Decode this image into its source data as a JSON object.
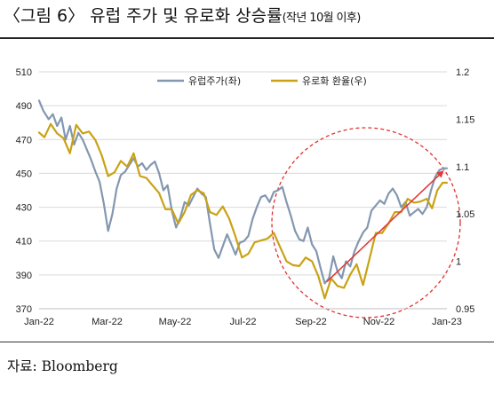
{
  "title": {
    "main": "〈그림 6〉 유럽 주가 및 유로화 상승률",
    "sub": "(작년 10월 이후)"
  },
  "source": "자료: Bloomberg",
  "colors": {
    "stock": "#8497b0",
    "euro": "#c9a215",
    "circle": "#e03030",
    "arrow": "#e03a3a"
  },
  "chart_data": {
    "type": "line",
    "x_labels": [
      "Jan-22",
      "Mar-22",
      "May-22",
      "Jul-22",
      "Sep-22",
      "Nov-22",
      "Jan-23"
    ],
    "x_range": [
      "2022-01-01",
      "2023-01-20"
    ],
    "ylim_left": [
      370,
      510
    ],
    "yticks_left": [
      "370",
      "390",
      "410",
      "430",
      "450",
      "470",
      "490",
      "510"
    ],
    "ylim_right": [
      0.95,
      1.2
    ],
    "yticks_right": [
      "0.95",
      "1",
      "1.05",
      "1.1",
      "1.15",
      "1.2"
    ],
    "legend_placement": "top-center",
    "annotations": [
      "dashed red circle around Sep-22 to Jan-23",
      "red upward arrow from late Sep-22 to Jan-23"
    ],
    "series": [
      {
        "name": "유럽주가(좌)",
        "axis": "left",
        "color": "#8497b0",
        "points": [
          [
            "2022-01-01",
            493
          ],
          [
            "2022-01-05",
            487
          ],
          [
            "2022-01-10",
            482
          ],
          [
            "2022-01-14",
            485
          ],
          [
            "2022-01-18",
            478
          ],
          [
            "2022-01-22",
            483
          ],
          [
            "2022-01-26",
            470
          ],
          [
            "2022-01-30",
            478
          ],
          [
            "2022-02-03",
            467
          ],
          [
            "2022-02-07",
            474
          ],
          [
            "2022-02-11",
            470
          ],
          [
            "2022-02-15",
            464
          ],
          [
            "2022-02-19",
            458
          ],
          [
            "2022-02-23",
            451
          ],
          [
            "2022-02-27",
            445
          ],
          [
            "2022-03-03",
            432
          ],
          [
            "2022-03-07",
            416
          ],
          [
            "2022-03-11",
            426
          ],
          [
            "2022-03-15",
            441
          ],
          [
            "2022-03-19",
            449
          ],
          [
            "2022-03-23",
            451
          ],
          [
            "2022-03-27",
            455
          ],
          [
            "2022-03-31",
            459
          ],
          [
            "2022-04-04",
            454
          ],
          [
            "2022-04-08",
            456
          ],
          [
            "2022-04-12",
            452
          ],
          [
            "2022-04-16",
            455
          ],
          [
            "2022-04-20",
            457
          ],
          [
            "2022-04-24",
            450
          ],
          [
            "2022-04-28",
            440
          ],
          [
            "2022-05-02",
            443
          ],
          [
            "2022-05-06",
            428
          ],
          [
            "2022-05-10",
            418
          ],
          [
            "2022-05-14",
            424
          ],
          [
            "2022-05-18",
            433
          ],
          [
            "2022-05-22",
            431
          ],
          [
            "2022-05-26",
            436
          ],
          [
            "2022-05-30",
            441
          ],
          [
            "2022-06-03",
            438
          ],
          [
            "2022-06-07",
            436
          ],
          [
            "2022-06-11",
            420
          ],
          [
            "2022-06-15",
            405
          ],
          [
            "2022-06-19",
            400
          ],
          [
            "2022-06-23",
            407
          ],
          [
            "2022-06-27",
            414
          ],
          [
            "2022-07-01",
            408
          ],
          [
            "2022-07-05",
            402
          ],
          [
            "2022-07-09",
            409
          ],
          [
            "2022-07-13",
            410
          ],
          [
            "2022-07-17",
            413
          ],
          [
            "2022-07-21",
            423
          ],
          [
            "2022-07-25",
            430
          ],
          [
            "2022-07-29",
            436
          ],
          [
            "2022-08-02",
            437
          ],
          [
            "2022-08-06",
            433
          ],
          [
            "2022-08-10",
            439
          ],
          [
            "2022-08-14",
            440
          ],
          [
            "2022-08-18",
            442
          ],
          [
            "2022-08-22",
            433
          ],
          [
            "2022-08-26",
            425
          ],
          [
            "2022-08-30",
            416
          ],
          [
            "2022-09-03",
            411
          ],
          [
            "2022-09-07",
            410
          ],
          [
            "2022-09-11",
            418
          ],
          [
            "2022-09-15",
            408
          ],
          [
            "2022-09-19",
            404
          ],
          [
            "2022-09-23",
            394
          ],
          [
            "2022-09-27",
            385
          ],
          [
            "2022-10-01",
            388
          ],
          [
            "2022-10-05",
            401
          ],
          [
            "2022-10-09",
            392
          ],
          [
            "2022-10-13",
            388
          ],
          [
            "2022-10-17",
            398
          ],
          [
            "2022-10-21",
            395
          ],
          [
            "2022-10-25",
            404
          ],
          [
            "2022-10-29",
            410
          ],
          [
            "2022-11-02",
            415
          ],
          [
            "2022-11-06",
            418
          ],
          [
            "2022-11-10",
            428
          ],
          [
            "2022-11-14",
            431
          ],
          [
            "2022-11-18",
            434
          ],
          [
            "2022-11-22",
            432
          ],
          [
            "2022-11-26",
            438
          ],
          [
            "2022-11-30",
            441
          ],
          [
            "2022-12-04",
            437
          ],
          [
            "2022-12-08",
            430
          ],
          [
            "2022-12-12",
            433
          ],
          [
            "2022-12-16",
            425
          ],
          [
            "2022-12-20",
            427
          ],
          [
            "2022-12-24",
            429
          ],
          [
            "2022-12-28",
            426
          ],
          [
            "2023-01-01",
            430
          ],
          [
            "2023-01-05",
            440
          ],
          [
            "2023-01-09",
            448
          ],
          [
            "2023-01-13",
            452
          ],
          [
            "2023-01-17",
            453
          ],
          [
            "2023-01-20",
            453
          ]
        ]
      },
      {
        "name": "유로화 환율(우)",
        "axis": "right",
        "color": "#c9a215",
        "points": [
          [
            "2022-01-01",
            1.136
          ],
          [
            "2022-01-06",
            1.131
          ],
          [
            "2022-01-12",
            1.145
          ],
          [
            "2022-01-18",
            1.135
          ],
          [
            "2022-01-24",
            1.13
          ],
          [
            "2022-01-30",
            1.114
          ],
          [
            "2022-02-05",
            1.144
          ],
          [
            "2022-02-11",
            1.135
          ],
          [
            "2022-02-17",
            1.137
          ],
          [
            "2022-02-23",
            1.128
          ],
          [
            "2022-03-01",
            1.112
          ],
          [
            "2022-03-07",
            1.09
          ],
          [
            "2022-03-13",
            1.094
          ],
          [
            "2022-03-19",
            1.106
          ],
          [
            "2022-03-25",
            1.1
          ],
          [
            "2022-03-31",
            1.114
          ],
          [
            "2022-04-06",
            1.09
          ],
          [
            "2022-04-12",
            1.088
          ],
          [
            "2022-04-18",
            1.08
          ],
          [
            "2022-04-24",
            1.072
          ],
          [
            "2022-04-30",
            1.055
          ],
          [
            "2022-05-06",
            1.055
          ],
          [
            "2022-05-12",
            1.04
          ],
          [
            "2022-05-18",
            1.052
          ],
          [
            "2022-05-24",
            1.07
          ],
          [
            "2022-05-30",
            1.075
          ],
          [
            "2022-06-05",
            1.072
          ],
          [
            "2022-06-11",
            1.052
          ],
          [
            "2022-06-17",
            1.049
          ],
          [
            "2022-06-23",
            1.058
          ],
          [
            "2022-06-29",
            1.045
          ],
          [
            "2022-07-05",
            1.026
          ],
          [
            "2022-07-11",
            1.004
          ],
          [
            "2022-07-17",
            1.008
          ],
          [
            "2022-07-23",
            1.02
          ],
          [
            "2022-07-29",
            1.022
          ],
          [
            "2022-08-04",
            1.024
          ],
          [
            "2022-08-10",
            1.03
          ],
          [
            "2022-08-16",
            1.015
          ],
          [
            "2022-08-22",
            1.0
          ],
          [
            "2022-08-28",
            0.996
          ],
          [
            "2022-09-03",
            0.995
          ],
          [
            "2022-09-09",
            1.004
          ],
          [
            "2022-09-15",
            1.0
          ],
          [
            "2022-09-21",
            0.984
          ],
          [
            "2022-09-27",
            0.961
          ],
          [
            "2022-10-03",
            0.982
          ],
          [
            "2022-10-09",
            0.974
          ],
          [
            "2022-10-15",
            0.972
          ],
          [
            "2022-10-21",
            0.986
          ],
          [
            "2022-10-27",
            0.997
          ],
          [
            "2022-11-02",
            0.975
          ],
          [
            "2022-11-08",
            1.002
          ],
          [
            "2022-11-14",
            1.03
          ],
          [
            "2022-11-20",
            1.03
          ],
          [
            "2022-11-26",
            1.04
          ],
          [
            "2022-12-02",
            1.052
          ],
          [
            "2022-12-08",
            1.052
          ],
          [
            "2022-12-14",
            1.066
          ],
          [
            "2022-12-20",
            1.062
          ],
          [
            "2022-12-26",
            1.063
          ],
          [
            "2023-01-01",
            1.066
          ],
          [
            "2023-01-06",
            1.056
          ],
          [
            "2023-01-11",
            1.075
          ],
          [
            "2023-01-16",
            1.083
          ],
          [
            "2023-01-20",
            1.083
          ]
        ]
      }
    ]
  }
}
